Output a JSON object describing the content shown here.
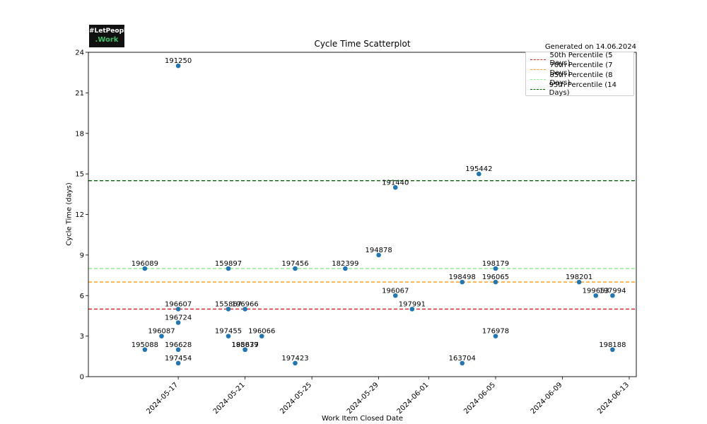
{
  "logo": {
    "line1": "#LetPeople",
    "line2": ".Work"
  },
  "generated": "Generated on 14.06.2024",
  "chart_data": {
    "type": "scatter",
    "title": "Cycle Time Scatterplot",
    "xlabel": "Work Item Closed Date",
    "ylabel": "Cycle Time (days)",
    "xlim": [
      "2024-05-12",
      "2024-06-13"
    ],
    "ylim": [
      0,
      24
    ],
    "x_ticks": [
      "2024-05-17",
      "2024-05-21",
      "2024-05-25",
      "2024-05-29",
      "2024-06-01",
      "2024-06-05",
      "2024-06-09",
      "2024-06-13"
    ],
    "y_ticks": [
      0,
      3,
      6,
      9,
      12,
      15,
      18,
      21,
      24
    ],
    "grid": false,
    "legend_position": "top-right",
    "point_color": "#1f77b4",
    "percentiles": [
      {
        "label": "50th Percentile (5 Days)",
        "value": 5,
        "color": "#d62728"
      },
      {
        "label": "70th Percentile (7 Days)",
        "value": 7,
        "color": "#ff9f1c"
      },
      {
        "label": "85th Percentile (8 Days)",
        "value": 8,
        "color": "#90ee90"
      },
      {
        "label": "95th Percentile (14 Days)",
        "value": 14.5,
        "color": "#006400"
      }
    ],
    "points": [
      {
        "id": "191250",
        "date": "2024-05-17",
        "y": 23
      },
      {
        "id": "196089",
        "date": "2024-05-15",
        "y": 8
      },
      {
        "id": "196607",
        "date": "2024-05-17",
        "y": 5
      },
      {
        "id": "196724",
        "date": "2024-05-17",
        "y": 4
      },
      {
        "id": "196087",
        "date": "2024-05-16",
        "y": 3
      },
      {
        "id": "195088",
        "date": "2024-05-15",
        "y": 2
      },
      {
        "id": "196628",
        "date": "2024-05-17",
        "y": 2
      },
      {
        "id": "197454",
        "date": "2024-05-17",
        "y": 1
      },
      {
        "id": "159897",
        "date": "2024-05-20",
        "y": 8
      },
      {
        "id": "155867",
        "date": "2024-05-20",
        "y": 5
      },
      {
        "id": "196966",
        "date": "2024-05-21",
        "y": 5
      },
      {
        "id": "197455",
        "date": "2024-05-20",
        "y": 3
      },
      {
        "id": "196066",
        "date": "2024-05-22",
        "y": 3
      },
      {
        "id": "195637",
        "date": "2024-05-21",
        "y": 2
      },
      {
        "id": "188879",
        "date": "2024-05-21",
        "y": 2
      },
      {
        "id": "197456",
        "date": "2024-05-24",
        "y": 8
      },
      {
        "id": "197423",
        "date": "2024-05-24",
        "y": 1
      },
      {
        "id": "182399",
        "date": "2024-05-27",
        "y": 8
      },
      {
        "id": "194878",
        "date": "2024-05-29",
        "y": 9
      },
      {
        "id": "191440",
        "date": "2024-05-30",
        "y": 14
      },
      {
        "id": "196067",
        "date": "2024-05-30",
        "y": 6
      },
      {
        "id": "197991",
        "date": "2024-05-31",
        "y": 5
      },
      {
        "id": "195442",
        "date": "2024-06-04",
        "y": 15
      },
      {
        "id": "198498",
        "date": "2024-06-03",
        "y": 7
      },
      {
        "id": "163704",
        "date": "2024-06-03",
        "y": 1
      },
      {
        "id": "198179",
        "date": "2024-06-05",
        "y": 8
      },
      {
        "id": "196065",
        "date": "2024-06-05",
        "y": 7
      },
      {
        "id": "176978",
        "date": "2024-06-05",
        "y": 3
      },
      {
        "id": "198201",
        "date": "2024-06-10",
        "y": 7
      },
      {
        "id": "199653",
        "date": "2024-06-11",
        "y": 6
      },
      {
        "id": "197994",
        "date": "2024-06-12",
        "y": 6
      },
      {
        "id": "198188",
        "date": "2024-06-12",
        "y": 2
      }
    ]
  }
}
